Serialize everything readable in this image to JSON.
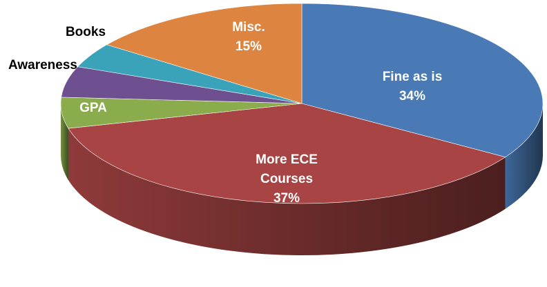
{
  "chart_data": {
    "type": "pie3d",
    "categories": [
      "Fine as is",
      "More ECE Courses",
      "GPA",
      "Awareness",
      "Books",
      "Misc."
    ],
    "values": [
      34,
      37,
      5,
      5,
      4,
      15
    ],
    "value_labels": [
      "34%",
      "37%",
      null,
      null,
      null,
      "15%"
    ],
    "colors": [
      "#4a7ab5",
      "#a84444",
      "#8aac4c",
      "#6e4f8f",
      "#3aa3b9",
      "#dd8540"
    ]
  }
}
